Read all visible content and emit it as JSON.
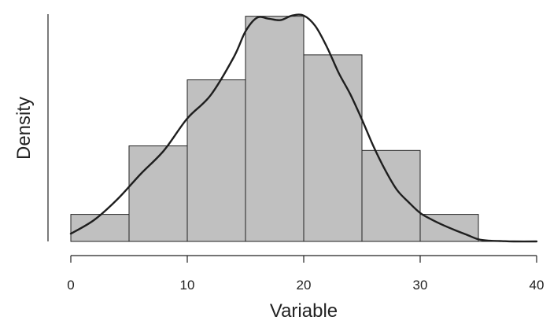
{
  "chart_data": {
    "type": "bar",
    "subtype": "histogram-with-density",
    "title": "",
    "xlabel": "Variable",
    "ylabel": "Density",
    "xlim": [
      0,
      40
    ],
    "ylim": [
      0,
      0.0647
    ],
    "x_ticks": [
      0,
      10,
      20,
      30,
      40
    ],
    "y_ticks_shown": false,
    "grid": false,
    "legend": "none",
    "bins": [
      {
        "x0": 0,
        "x1": 5,
        "density": 0.0077
      },
      {
        "x0": 5,
        "x1": 10,
        "density": 0.0272
      },
      {
        "x0": 10,
        "x1": 15,
        "density": 0.046
      },
      {
        "x0": 15,
        "x1": 20,
        "density": 0.0641
      },
      {
        "x0": 20,
        "x1": 25,
        "density": 0.0531
      },
      {
        "x0": 25,
        "x1": 30,
        "density": 0.0259
      },
      {
        "x0": 30,
        "x1": 35,
        "density": 0.0077
      },
      {
        "x0": 35,
        "x1": 40,
        "density": 0.0
      }
    ],
    "density_curve": [
      [
        0,
        0.0022
      ],
      [
        2,
        0.0061
      ],
      [
        4,
        0.012
      ],
      [
        6,
        0.0192
      ],
      [
        8,
        0.0259
      ],
      [
        10,
        0.035
      ],
      [
        12,
        0.0416
      ],
      [
        14,
        0.0525
      ],
      [
        15,
        0.0598
      ],
      [
        16,
        0.0637
      ],
      [
        17,
        0.0634
      ],
      [
        18,
        0.063
      ],
      [
        19,
        0.0643
      ],
      [
        20,
        0.0643
      ],
      [
        21,
        0.0613
      ],
      [
        22,
        0.0553
      ],
      [
        23,
        0.048
      ],
      [
        24,
        0.0419
      ],
      [
        25,
        0.0347
      ],
      [
        26,
        0.027
      ],
      [
        27,
        0.0203
      ],
      [
        28,
        0.0147
      ],
      [
        29,
        0.0112
      ],
      [
        30,
        0.0081
      ],
      [
        31,
        0.0062
      ],
      [
        32,
        0.0046
      ],
      [
        33,
        0.0032
      ],
      [
        34,
        0.0019
      ],
      [
        35,
        0.0006
      ],
      [
        36,
        0.0002
      ],
      [
        37,
        0.0001
      ],
      [
        38,
        0.0
      ],
      [
        40,
        0.0
      ]
    ],
    "colors": {
      "bar_fill": "#c0c0c0",
      "bar_stroke": "#222222",
      "curve": "#1e1e1e",
      "axis": "#222222",
      "text": "#222222"
    }
  }
}
